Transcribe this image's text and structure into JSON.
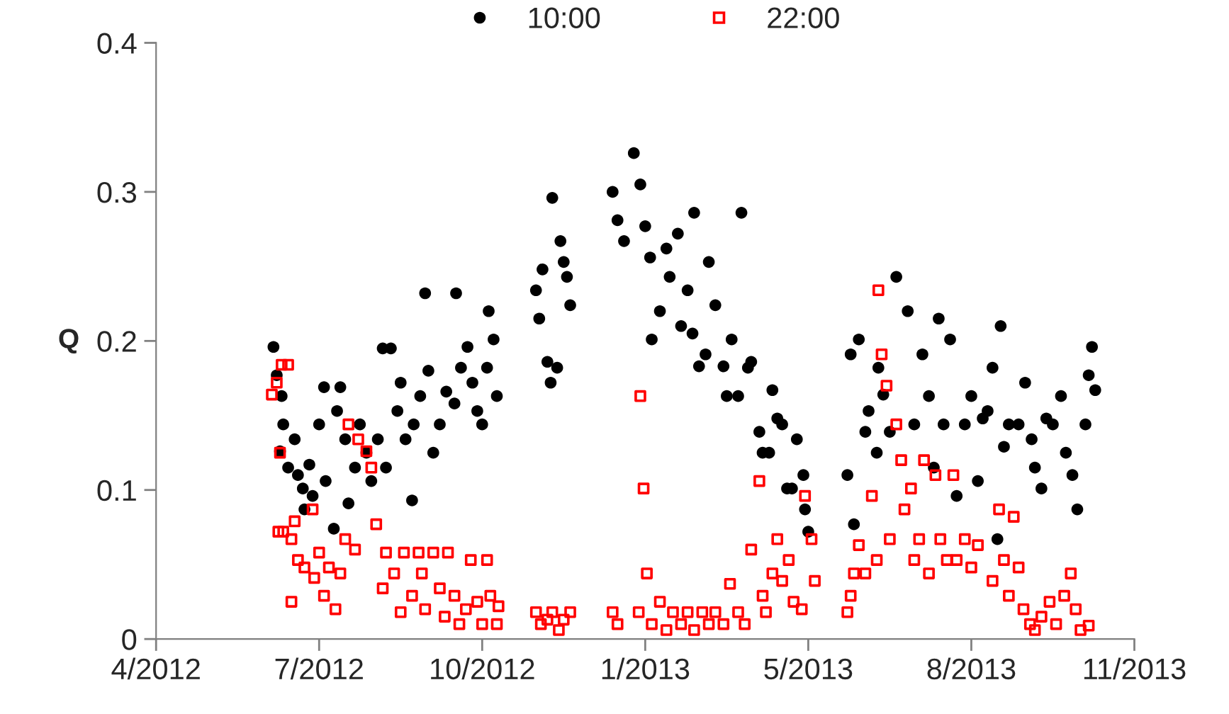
{
  "chart_data": {
    "type": "scatter",
    "ylabel": "Q",
    "legend": "top",
    "xlim": [
      "2012-04-01",
      "2013-11-22"
    ],
    "xticks": [
      {
        "value": "2012-04-01",
        "label": "4/2012"
      },
      {
        "value": "2012-07-10",
        "label": "7/2012"
      },
      {
        "value": "2012-10-18",
        "label": "10/2012"
      },
      {
        "value": "2013-01-26",
        "label": "1/2013"
      },
      {
        "value": "2013-05-06",
        "label": "5/2013"
      },
      {
        "value": "2013-08-14",
        "label": "8/2013"
      },
      {
        "value": "2013-11-22",
        "label": "11/2013"
      }
    ],
    "ylim": [
      0,
      0.4
    ],
    "yticks": [
      0,
      0.1,
      0.2,
      0.3,
      0.4
    ],
    "series": [
      {
        "name": "10:00",
        "color": "#000000",
        "marker": "circle",
        "x": [
          "2012-06-12",
          "2012-06-14",
          "2012-06-17",
          "2012-06-18",
          "2012-06-16",
          "2012-06-21",
          "2012-06-25",
          "2012-06-27",
          "2012-06-30",
          "2012-07-01",
          "2012-07-04",
          "2012-07-06",
          "2012-07-10",
          "2012-07-13",
          "2012-07-14",
          "2012-07-19",
          "2012-07-21",
          "2012-07-23",
          "2012-07-26",
          "2012-07-28",
          "2012-08-01",
          "2012-08-04",
          "2012-08-08",
          "2012-08-11",
          "2012-08-15",
          "2012-08-18",
          "2012-08-20",
          "2012-08-23",
          "2012-08-27",
          "2012-08-29",
          "2012-09-01",
          "2012-09-05",
          "2012-09-06",
          "2012-09-10",
          "2012-09-13",
          "2012-09-15",
          "2012-09-18",
          "2012-09-22",
          "2012-09-26",
          "2012-10-01",
          "2012-10-02",
          "2012-10-05",
          "2012-10-09",
          "2012-10-12",
          "2012-10-15",
          "2012-10-18",
          "2012-10-21",
          "2012-10-22",
          "2012-10-25",
          "2012-10-27",
          "2012-11-20",
          "2012-11-22",
          "2012-11-24",
          "2012-11-27",
          "2012-11-29",
          "2012-11-30",
          "2012-12-03",
          "2012-12-05",
          "2012-12-07",
          "2012-12-09",
          "2012-12-11",
          "2013-01-06",
          "2013-01-09",
          "2013-01-13",
          "2013-01-19",
          "2013-01-23",
          "2013-01-26",
          "2013-01-29",
          "2013-01-30",
          "2013-02-04",
          "2013-02-08",
          "2013-02-10",
          "2013-02-15",
          "2013-02-17",
          "2013-02-21",
          "2013-02-24",
          "2013-02-25",
          "2013-02-28",
          "2013-03-04",
          "2013-03-06",
          "2013-03-10",
          "2013-03-15",
          "2013-03-17",
          "2013-03-20",
          "2013-03-24",
          "2013-03-26",
          "2013-03-30",
          "2013-04-01",
          "2013-04-06",
          "2013-04-08",
          "2013-04-12",
          "2013-04-14",
          "2013-04-17",
          "2013-04-20",
          "2013-04-23",
          "2013-04-26",
          "2013-04-29",
          "2013-05-03",
          "2013-05-04",
          "2013-05-06",
          "2013-05-30",
          "2013-06-01",
          "2013-06-03",
          "2013-06-06",
          "2013-06-10",
          "2013-06-12",
          "2013-06-17",
          "2013-06-18",
          "2013-06-21",
          "2013-06-25",
          "2013-06-29",
          "2013-07-06",
          "2013-07-10",
          "2013-07-15",
          "2013-07-19",
          "2013-07-22",
          "2013-07-25",
          "2013-07-28",
          "2013-08-01",
          "2013-08-05",
          "2013-08-10",
          "2013-08-14",
          "2013-08-18",
          "2013-08-21",
          "2013-08-24",
          "2013-08-27",
          "2013-08-30",
          "2013-09-01",
          "2013-09-03",
          "2013-09-06",
          "2013-09-12",
          "2013-09-16",
          "2013-09-20",
          "2013-09-22",
          "2013-09-26",
          "2013-09-29",
          "2013-10-03",
          "2013-10-08",
          "2013-10-11",
          "2013-10-15",
          "2013-10-18",
          "2013-10-23",
          "2013-10-25",
          "2013-10-27",
          "2013-10-29"
        ],
        "values": [
          0.196,
          0.177,
          0.163,
          0.144,
          0.126,
          0.115,
          0.134,
          0.11,
          0.101,
          0.087,
          0.117,
          0.096,
          0.144,
          0.169,
          0.106,
          0.074,
          0.153,
          0.169,
          0.134,
          0.091,
          0.115,
          0.144,
          0.125,
          0.106,
          0.134,
          0.195,
          0.115,
          0.195,
          0.153,
          0.172,
          0.134,
          0.093,
          0.144,
          0.163,
          0.232,
          0.18,
          0.125,
          0.144,
          0.166,
          0.158,
          0.232,
          0.182,
          0.196,
          0.172,
          0.153,
          0.144,
          0.182,
          0.22,
          0.201,
          0.163,
          0.234,
          0.215,
          0.248,
          0.186,
          0.172,
          0.296,
          0.182,
          0.267,
          0.253,
          0.243,
          0.224,
          0.3,
          0.281,
          0.267,
          0.326,
          0.305,
          0.277,
          0.256,
          0.201,
          0.22,
          0.262,
          0.243,
          0.272,
          0.21,
          0.234,
          0.205,
          0.286,
          0.183,
          0.191,
          0.253,
          0.224,
          0.183,
          0.163,
          0.201,
          0.163,
          0.286,
          0.182,
          0.186,
          0.139,
          0.125,
          0.125,
          0.167,
          0.148,
          0.144,
          0.101,
          0.101,
          0.134,
          0.11,
          0.087,
          0.072,
          0.11,
          0.191,
          0.077,
          0.201,
          0.139,
          0.153,
          0.125,
          0.182,
          0.164,
          0.139,
          0.243,
          0.22,
          0.144,
          0.191,
          0.163,
          0.115,
          0.215,
          0.144,
          0.201,
          0.096,
          0.144,
          0.163,
          0.106,
          0.148,
          0.153,
          0.182,
          0.067,
          0.21,
          0.129,
          0.144,
          0.144,
          0.172,
          0.134,
          0.115,
          0.101,
          0.148,
          0.144,
          0.163,
          0.125,
          0.11,
          0.087,
          0.144,
          0.177,
          0.196,
          0.167
        ]
      },
      {
        "name": "22:00",
        "color": "#ff0000",
        "marker": "square",
        "x": [
          "2012-06-11",
          "2012-06-14",
          "2012-06-17",
          "2012-06-21",
          "2012-06-16",
          "2012-06-15",
          "2012-06-18",
          "2012-06-23",
          "2012-06-25",
          "2012-06-23",
          "2012-06-27",
          "2012-07-01",
          "2012-07-06",
          "2012-07-07",
          "2012-07-10",
          "2012-07-13",
          "2012-07-16",
          "2012-07-20",
          "2012-07-23",
          "2012-07-26",
          "2012-07-28",
          "2012-08-01",
          "2012-08-03",
          "2012-08-08",
          "2012-08-11",
          "2012-08-14",
          "2012-08-18",
          "2012-08-20",
          "2012-08-25",
          "2012-08-29",
          "2012-08-31",
          "2012-09-05",
          "2012-09-09",
          "2012-09-11",
          "2012-09-13",
          "2012-09-18",
          "2012-09-22",
          "2012-09-25",
          "2012-09-27",
          "2012-10-01",
          "2012-10-04",
          "2012-10-08",
          "2012-10-11",
          "2012-10-15",
          "2012-10-18",
          "2012-10-21",
          "2012-10-23",
          "2012-10-27",
          "2012-10-28",
          "2012-11-20",
          "2012-11-23",
          "2012-11-27",
          "2012-11-30",
          "2012-12-04",
          "2012-12-07",
          "2012-12-11",
          "2013-01-06",
          "2013-01-09",
          "2013-01-22",
          "2013-01-23",
          "2013-01-25",
          "2013-01-27",
          "2013-01-30",
          "2013-02-04",
          "2013-02-08",
          "2013-02-12",
          "2013-02-17",
          "2013-02-21",
          "2013-02-25",
          "2013-03-02",
          "2013-03-06",
          "2013-03-10",
          "2013-03-15",
          "2013-03-19",
          "2013-03-24",
          "2013-03-28",
          "2013-04-01",
          "2013-04-06",
          "2013-04-08",
          "2013-04-10",
          "2013-04-14",
          "2013-04-17",
          "2013-04-20",
          "2013-04-24",
          "2013-04-27",
          "2013-05-02",
          "2013-05-04",
          "2013-05-08",
          "2013-05-10",
          "2013-05-30",
          "2013-06-01",
          "2013-06-03",
          "2013-06-06",
          "2013-06-10",
          "2013-06-14",
          "2013-06-17",
          "2013-06-18",
          "2013-06-20",
          "2013-06-23",
          "2013-06-25",
          "2013-06-29",
          "2013-07-02",
          "2013-07-04",
          "2013-07-08",
          "2013-07-10",
          "2013-07-13",
          "2013-07-16",
          "2013-07-19",
          "2013-07-23",
          "2013-07-26",
          "2013-07-30",
          "2013-08-03",
          "2013-08-05",
          "2013-08-10",
          "2013-08-14",
          "2013-08-18",
          "2013-08-27",
          "2013-08-31",
          "2013-09-03",
          "2013-09-06",
          "2013-09-09",
          "2013-09-12",
          "2013-09-15",
          "2013-09-19",
          "2013-09-22",
          "2013-09-26",
          "2013-10-01",
          "2013-10-05",
          "2013-10-10",
          "2013-10-14",
          "2013-10-17",
          "2013-10-20",
          "2013-10-25"
        ],
        "values": [
          0.164,
          0.172,
          0.184,
          0.184,
          0.125,
          0.072,
          0.072,
          0.067,
          0.079,
          0.025,
          0.053,
          0.048,
          0.087,
          0.041,
          0.058,
          0.029,
          0.048,
          0.02,
          0.044,
          0.067,
          0.144,
          0.06,
          0.134,
          0.126,
          0.115,
          0.077,
          0.034,
          0.058,
          0.044,
          0.018,
          0.058,
          0.029,
          0.058,
          0.044,
          0.02,
          0.058,
          0.034,
          0.015,
          0.058,
          0.029,
          0.01,
          0.02,
          0.053,
          0.025,
          0.01,
          0.053,
          0.029,
          0.01,
          0.022,
          0.018,
          0.01,
          0.013,
          0.018,
          0.006,
          0.013,
          0.018,
          0.018,
          0.01,
          0.018,
          0.163,
          0.101,
          0.044,
          0.01,
          0.025,
          0.006,
          0.018,
          0.01,
          0.018,
          0.006,
          0.018,
          0.01,
          0.018,
          0.01,
          0.037,
          0.018,
          0.01,
          0.06,
          0.106,
          0.029,
          0.018,
          0.044,
          0.067,
          0.039,
          0.053,
          0.025,
          0.02,
          0.096,
          0.067,
          0.039,
          0.018,
          0.029,
          0.044,
          0.063,
          0.044,
          0.096,
          0.053,
          0.234,
          0.191,
          0.17,
          0.067,
          0.144,
          0.12,
          0.087,
          0.101,
          0.053,
          0.067,
          0.12,
          0.044,
          0.11,
          0.067,
          0.053,
          0.11,
          0.053,
          0.067,
          0.048,
          0.063,
          0.039,
          0.087,
          0.053,
          0.029,
          0.082,
          0.048,
          0.02,
          0.01,
          0.006,
          0.015,
          0.025,
          0.01,
          0.029,
          0.044,
          0.02,
          0.006,
          0.009
        ]
      }
    ]
  }
}
